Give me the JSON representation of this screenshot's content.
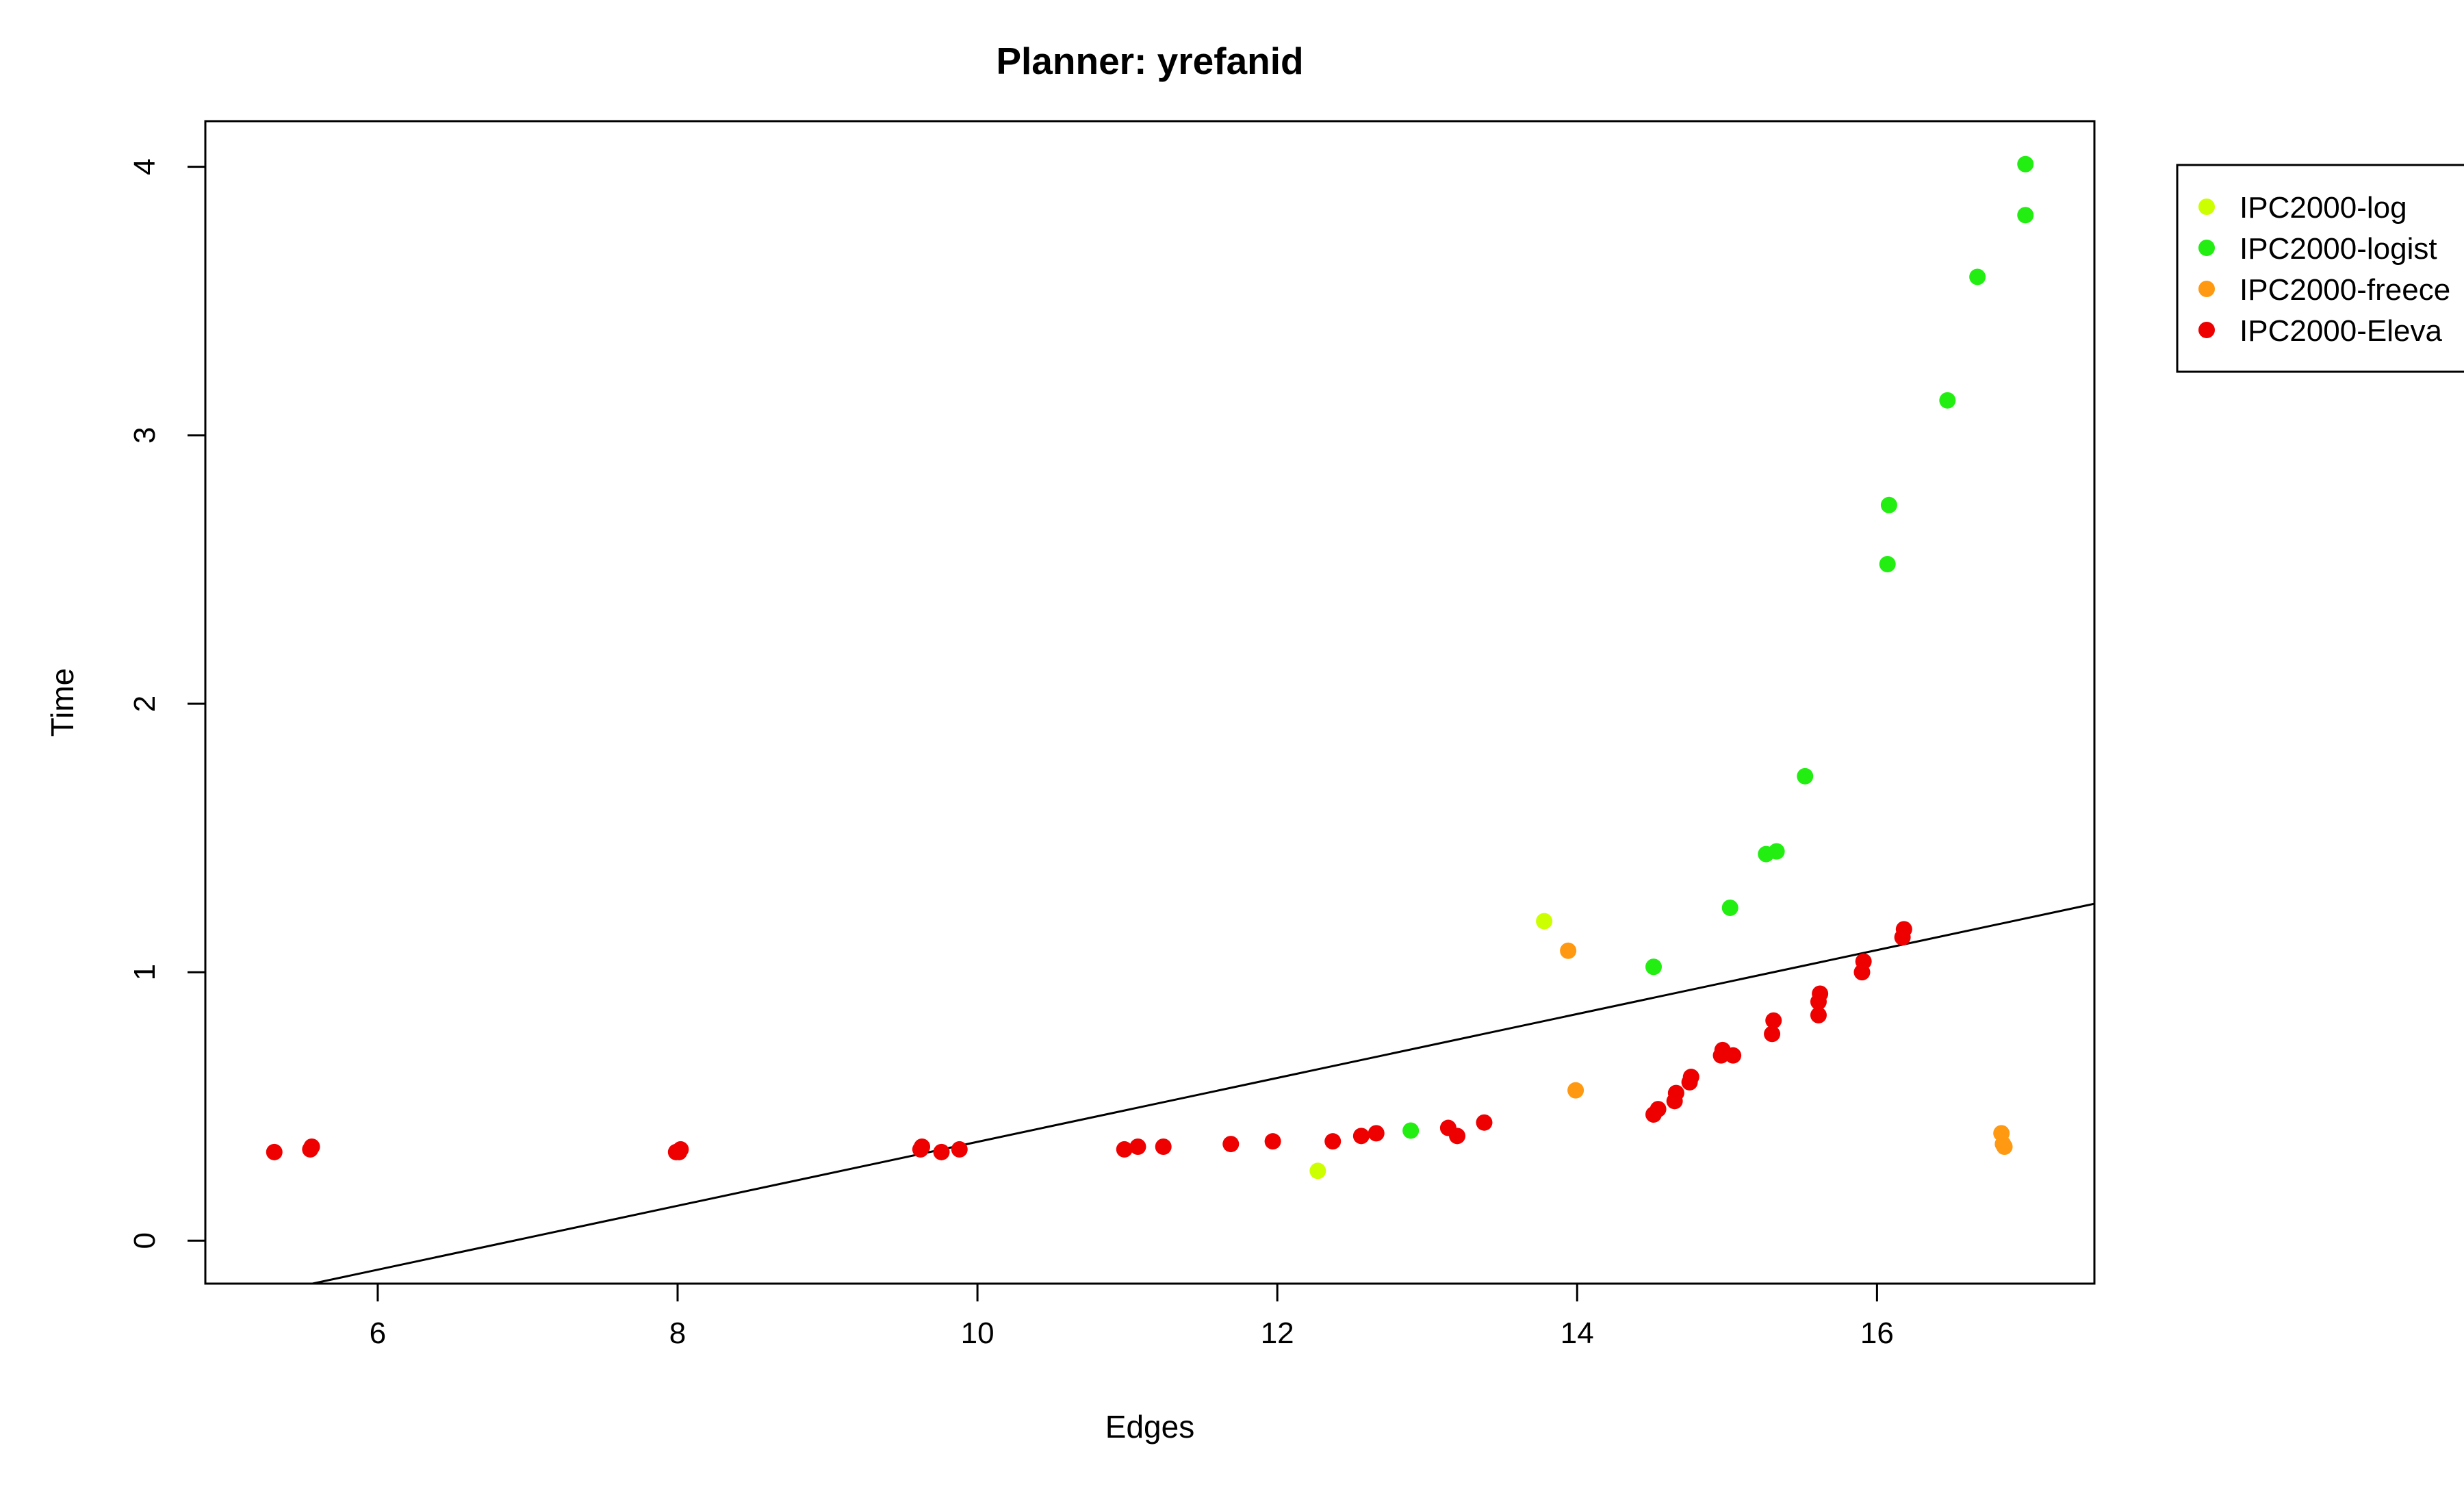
{
  "chart_data": {
    "type": "scatter",
    "title": "Planner: yrefanid",
    "xlabel": "Edges",
    "ylabel": "Time",
    "xlim": [
      4.85,
      17.45
    ],
    "ylim": [
      -0.16,
      4.17
    ],
    "xticks": [
      6,
      8,
      10,
      12,
      14,
      16
    ],
    "yticks": [
      0,
      1,
      2,
      3,
      4
    ],
    "grid": false,
    "legend_position": "top-right",
    "series": [
      {
        "name": "IPC2000-log",
        "color": "#ccff00",
        "points": [
          [
            12.27,
            0.26
          ],
          [
            13.78,
            1.19
          ]
        ]
      },
      {
        "name": "IPC2000-logist",
        "color": "#22ee11",
        "points": [
          [
            12.89,
            0.41
          ],
          [
            14.51,
            1.02
          ],
          [
            15.02,
            1.24
          ],
          [
            15.26,
            1.44
          ],
          [
            15.33,
            1.45
          ],
          [
            15.52,
            1.73
          ],
          [
            16.07,
            2.52
          ],
          [
            16.08,
            2.74
          ],
          [
            16.47,
            3.13
          ],
          [
            16.67,
            3.59
          ],
          [
            16.99,
            3.82
          ],
          [
            16.99,
            4.01
          ]
        ]
      },
      {
        "name": "IPC2000-freece",
        "color": "#ff9911",
        "points": [
          [
            13.94,
            1.08
          ],
          [
            13.99,
            0.56
          ],
          [
            16.83,
            0.4
          ],
          [
            16.84,
            0.36
          ],
          [
            16.85,
            0.35
          ]
        ]
      },
      {
        "name": "IPC2000-Eleva",
        "color": "#ee0000",
        "points": [
          [
            5.31,
            0.33
          ],
          [
            5.55,
            0.34
          ],
          [
            5.56,
            0.35
          ],
          [
            7.99,
            0.33
          ],
          [
            8.01,
            0.33
          ],
          [
            8.02,
            0.34
          ],
          [
            9.62,
            0.34
          ],
          [
            9.63,
            0.35
          ],
          [
            9.76,
            0.33
          ],
          [
            9.88,
            0.34
          ],
          [
            10.98,
            0.34
          ],
          [
            11.07,
            0.35
          ],
          [
            11.24,
            0.35
          ],
          [
            11.69,
            0.36
          ],
          [
            11.97,
            0.37
          ],
          [
            12.37,
            0.37
          ],
          [
            12.56,
            0.39
          ],
          [
            12.66,
            0.4
          ],
          [
            13.14,
            0.42
          ],
          [
            13.2,
            0.39
          ],
          [
            13.38,
            0.44
          ],
          [
            14.51,
            0.47
          ],
          [
            14.54,
            0.49
          ],
          [
            14.65,
            0.52
          ],
          [
            14.66,
            0.55
          ],
          [
            14.75,
            0.59
          ],
          [
            14.76,
            0.61
          ],
          [
            14.96,
            0.69
          ],
          [
            14.97,
            0.71
          ],
          [
            15.04,
            0.69
          ],
          [
            15.3,
            0.77
          ],
          [
            15.31,
            0.82
          ],
          [
            15.61,
            0.84
          ],
          [
            15.61,
            0.89
          ],
          [
            15.62,
            0.92
          ],
          [
            15.9,
            1.0
          ],
          [
            15.91,
            1.04
          ],
          [
            16.17,
            1.13
          ],
          [
            16.18,
            1.16
          ]
        ]
      }
    ],
    "fit_line": {
      "color": "#000000",
      "x": [
        4.85,
        17.45
      ],
      "y": [
        -0.245,
        1.255
      ]
    }
  }
}
